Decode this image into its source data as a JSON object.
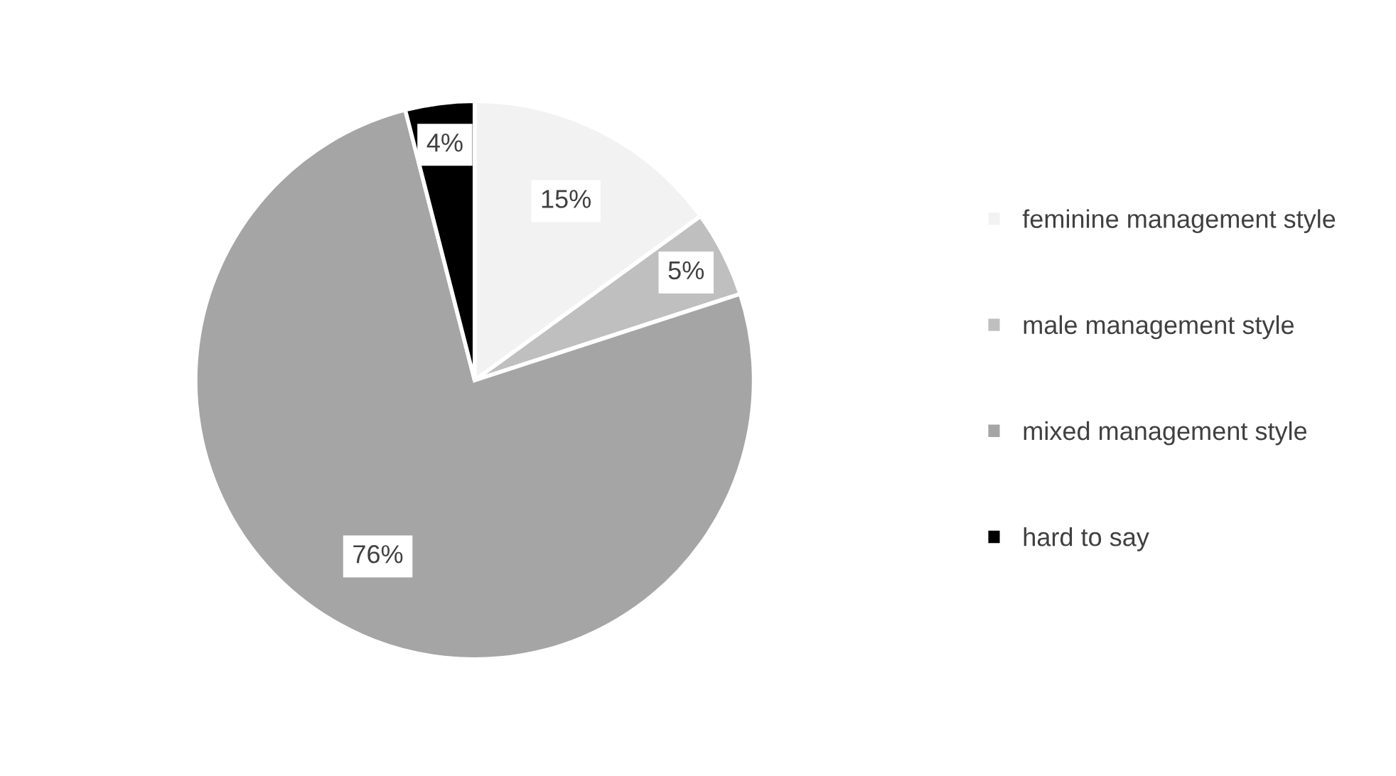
{
  "chart_data": {
    "type": "pie",
    "categories": [
      "feminine management style",
      "male management style",
      "mixed management style",
      "hard to say"
    ],
    "values": [
      15,
      5,
      76,
      4
    ],
    "colors": [
      "#f2f2f2",
      "#bfbfbf",
      "#a5a5a5",
      "#000000"
    ],
    "value_labels": [
      "15%",
      "5%",
      "76%",
      "4%"
    ],
    "legend": "right"
  }
}
